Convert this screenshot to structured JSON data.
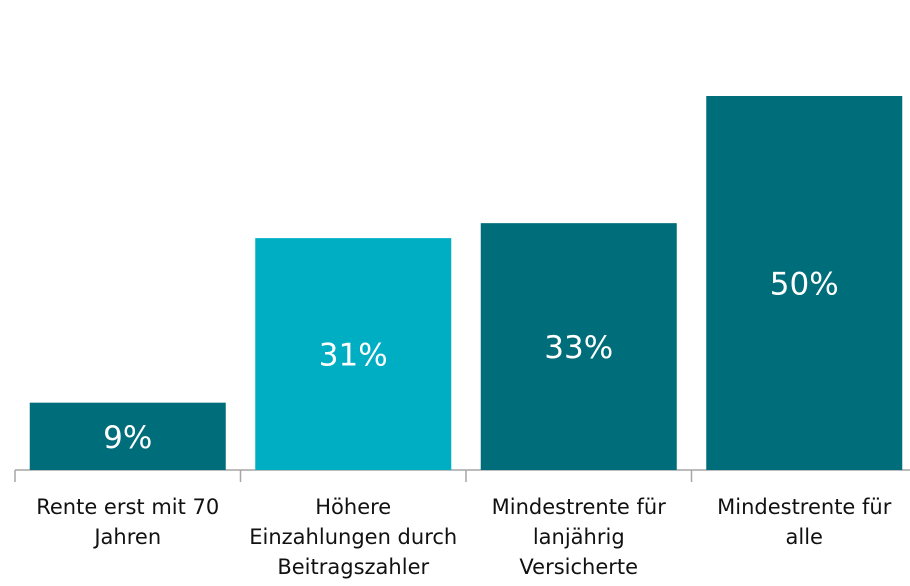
{
  "chart_data": {
    "type": "bar",
    "categories": [
      "Rente erst mit 70\nJahren",
      "Höhere\nEinzahlungen durch\nBeitragszahler",
      "Mindestrente für\nlanjährig\nVersicherte",
      "Mindestrente für\nalle"
    ],
    "values": [
      9,
      31,
      33,
      50
    ],
    "value_labels": [
      "9%",
      "31%",
      "33%",
      "50%"
    ],
    "colors": [
      "#006d7a",
      "#00aec4",
      "#006d7a",
      "#006d7a"
    ],
    "ylim": [
      0,
      50
    ]
  }
}
